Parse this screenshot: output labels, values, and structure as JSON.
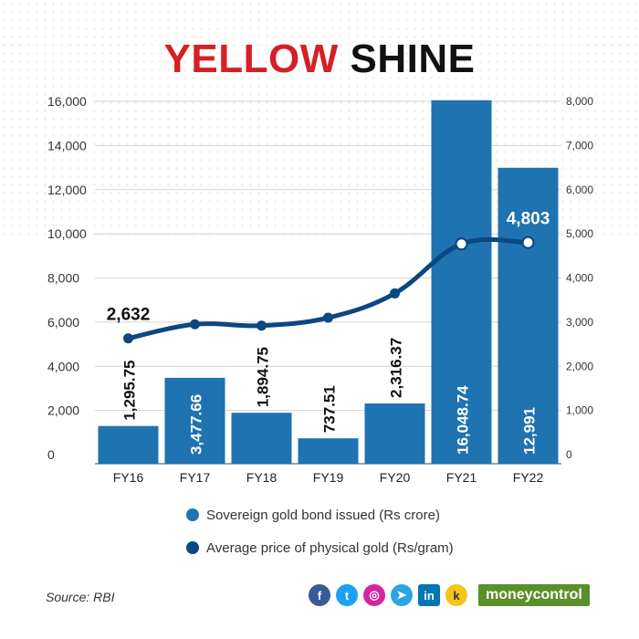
{
  "title": {
    "part1": "YELLOW",
    "part2": "SHINE"
  },
  "chart_data": {
    "type": "bar+line",
    "categories": [
      "FY16",
      "FY17",
      "FY18",
      "FY19",
      "FY20",
      "FY21",
      "FY22"
    ],
    "series": [
      {
        "name": "Sovereign gold bond issued (Rs crore)",
        "type": "bar",
        "axis": "left",
        "values": [
          1295.75,
          3477.66,
          1894.75,
          737.51,
          2316.37,
          16048.74,
          12991
        ],
        "labels": [
          "1,295.75",
          "3,477.66",
          "1,894.75",
          "737.51",
          "2,316.37",
          "16,048.74",
          "12,991"
        ]
      },
      {
        "name": "Average price of physical gold (Rs/gram)",
        "type": "line",
        "axis": "right",
        "values": [
          2632,
          2950,
          2920,
          3100,
          3650,
          4770,
          4803
        ],
        "labels": [
          "2,632",
          "",
          "",
          "",
          "",
          "",
          "4,803"
        ]
      }
    ],
    "left_axis": {
      "ylim": [
        0,
        16000
      ],
      "ticks": [
        "0",
        "2,000",
        "4,000",
        "6,000",
        "8,000",
        "10,000",
        "12,000",
        "14,000",
        "16,000"
      ]
    },
    "right_axis": {
      "ylim": [
        0,
        8000
      ],
      "ticks": [
        "0",
        "1,000",
        "2,000",
        "3,000",
        "4,000",
        "5,000",
        "6,000",
        "7,000",
        "8,000"
      ]
    },
    "grid": true
  },
  "legend": {
    "items": [
      {
        "label": "Sovereign gold bond issued (Rs crore)",
        "color": "#1f73b0"
      },
      {
        "label": "Average price of physical gold (Rs/gram)",
        "color": "#0b4781"
      }
    ]
  },
  "source": "Source: RBI",
  "brand": {
    "part1": "money",
    "part2": "control"
  },
  "colors": {
    "bar": "#1f73b0",
    "line": "#0b4781",
    "title_red": "#d61f26"
  },
  "social_icons": [
    {
      "name": "facebook-icon",
      "glyph": "f",
      "color": "#3b5998"
    },
    {
      "name": "twitter-icon",
      "glyph": "t",
      "color": "#1da1f2"
    },
    {
      "name": "instagram-icon",
      "glyph": "◎",
      "color": "#d6249f"
    },
    {
      "name": "telegram-icon",
      "glyph": "➤",
      "color": "#2ca5e0"
    },
    {
      "name": "linkedin-icon",
      "glyph": "in",
      "color": "#0077b5"
    },
    {
      "name": "koo-icon",
      "glyph": "k",
      "color": "#f5c518"
    }
  ]
}
